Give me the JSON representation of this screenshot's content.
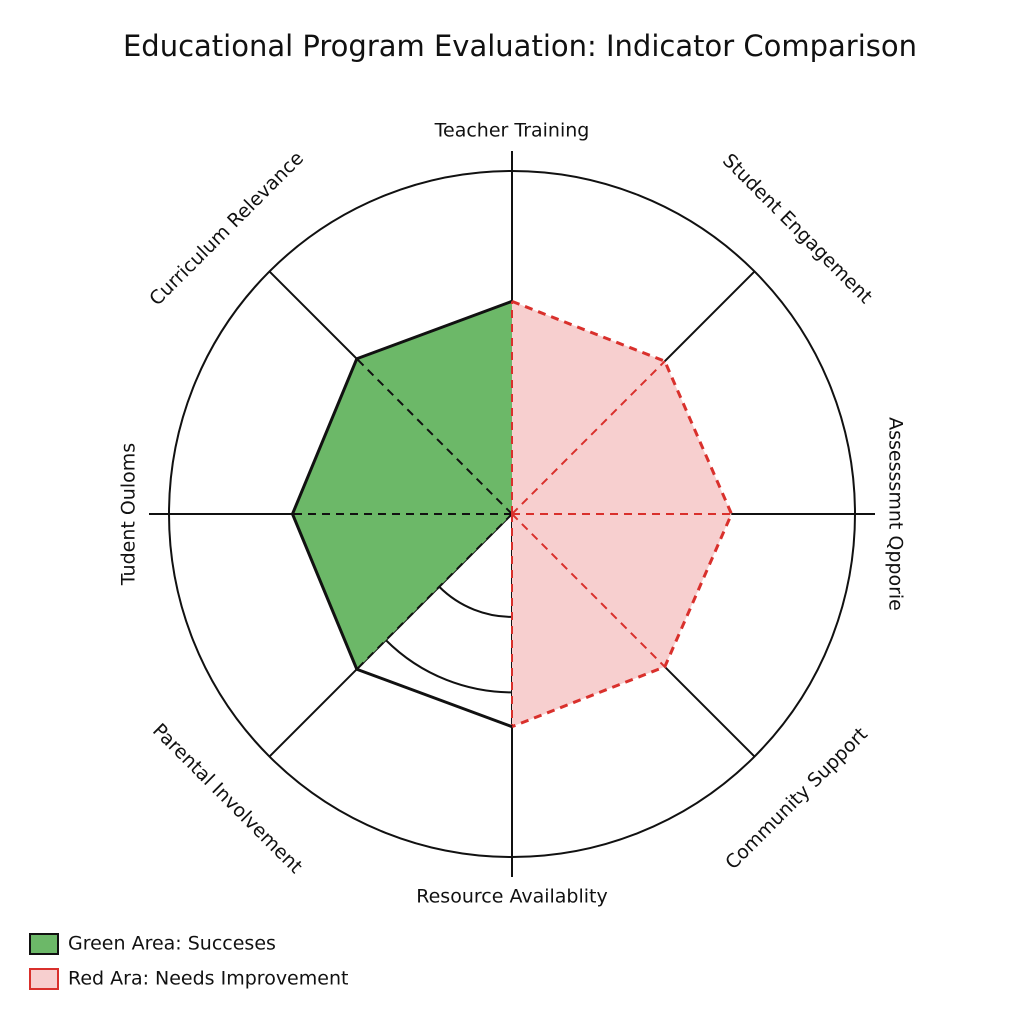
{
  "chart_data": {
    "type": "radar",
    "title": "Educational Program Evaluation: Indicator Comparison",
    "categories": [
      "Teacher Training",
      "Student Engagement",
      "Assesssmnt Qpporie",
      "Community Support",
      "Resource Availablity",
      "Parental Involvement",
      "Tudent Ouloms",
      "Curriculum Relevance"
    ],
    "series": [
      {
        "name": "Green Area: Succeses",
        "color": "#111111",
        "fill": "#6cb868",
        "dashed": false,
        "values": [
          62,
          null,
          null,
          null,
          null,
          64,
          64,
          64
        ]
      },
      {
        "name": "Red Ara: Needs Improvement",
        "color": "#d9302c",
        "fill": "#f7cfcf",
        "dashed": true,
        "values": [
          62,
          63,
          64,
          63,
          62,
          null,
          null,
          null
        ]
      }
    ],
    "rlim": [
      0,
      100
    ],
    "rticks": [
      30,
      52,
      100
    ]
  }
}
